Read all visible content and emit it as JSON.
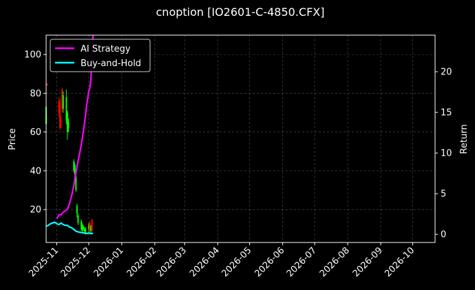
{
  "chart_data": {
    "type": "line",
    "title": "cnoption [IO2601-C-4850.CFX]",
    "xlabel": "",
    "ylabel": "Price",
    "y2label": "Return",
    "background": "#000000",
    "grid": true,
    "legend_position": "upper-left",
    "xlim": [
      "2025-10-22",
      "2026-10-22"
    ],
    "ylim": [
      3,
      110
    ],
    "y2lim": [
      -1,
      24.5
    ],
    "x_ticks": [
      "2025-11",
      "2025-12",
      "2026-01",
      "2026-02",
      "2026-03",
      "2026-04",
      "2026-05",
      "2026-06",
      "2026-07",
      "2026-08",
      "2026-09",
      "2026-10"
    ],
    "y_ticks": [
      20,
      40,
      60,
      80,
      100
    ],
    "y2_ticks": [
      0,
      5,
      10,
      15,
      20
    ],
    "colors": {
      "up": "#00ff00",
      "down": "#ff0000",
      "ai": "#ff00ff",
      "bh": "#00ffff"
    },
    "candles": [
      {
        "date": "2025-10-22",
        "open": 64,
        "close": 73,
        "low": 63,
        "high": 73
      },
      {
        "date": "2025-10-23",
        "open": 85,
        "close": 84,
        "low": 84,
        "high": 85
      },
      {
        "date": "2025-11-03",
        "open": 76,
        "close": 70,
        "low": 68,
        "high": 78
      },
      {
        "date": "2025-11-04",
        "open": 74,
        "close": 62,
        "low": 61,
        "high": 77
      },
      {
        "date": "2025-11-05",
        "open": 66,
        "close": 65,
        "low": 62,
        "high": 68
      },
      {
        "date": "2025-11-06",
        "open": 82,
        "close": 72,
        "low": 70,
        "high": 83
      },
      {
        "date": "2025-11-07",
        "open": 72,
        "close": 79,
        "low": 70,
        "high": 81
      },
      {
        "date": "2025-11-10",
        "open": 66,
        "close": 78,
        "low": 64,
        "high": 82
      },
      {
        "date": "2025-11-11",
        "open": 60,
        "close": 70,
        "low": 56,
        "high": 71
      },
      {
        "date": "2025-11-12",
        "open": 62,
        "close": 65,
        "low": 60,
        "high": 67
      },
      {
        "date": "2025-11-17",
        "open": 40,
        "close": 45,
        "low": 39,
        "high": 46
      },
      {
        "date": "2025-11-18",
        "open": 38,
        "close": 43,
        "low": 36,
        "high": 44
      },
      {
        "date": "2025-11-19",
        "open": 30,
        "close": 37,
        "low": 29,
        "high": 38
      },
      {
        "date": "2025-11-20",
        "open": 18,
        "close": 22,
        "low": 16,
        "high": 23
      },
      {
        "date": "2025-11-21",
        "open": 13,
        "close": 17,
        "low": 12,
        "high": 18
      },
      {
        "date": "2025-11-24",
        "open": 10,
        "close": 14,
        "low": 9,
        "high": 15
      },
      {
        "date": "2025-11-25",
        "open": 9,
        "close": 12,
        "low": 8,
        "high": 13
      },
      {
        "date": "2025-11-26",
        "open": 10,
        "close": 11,
        "low": 9,
        "high": 12
      },
      {
        "date": "2025-11-27",
        "open": 9,
        "close": 10,
        "low": 8,
        "high": 11
      },
      {
        "date": "2025-11-28",
        "open": 8,
        "close": 10,
        "low": 7,
        "high": 11
      },
      {
        "date": "2025-12-01",
        "open": 10,
        "close": 12,
        "low": 8,
        "high": 13
      },
      {
        "date": "2025-12-02",
        "open": 13,
        "close": 9,
        "low": 8,
        "high": 14
      },
      {
        "date": "2025-12-03",
        "open": 9,
        "close": 11,
        "low": 8,
        "high": 12
      },
      {
        "date": "2025-12-04",
        "open": 15,
        "close": 9,
        "low": 8,
        "high": 15
      }
    ],
    "series": [
      {
        "name": "AI Strategy",
        "axis": "right",
        "dates": [
          "2025-11-01",
          "2025-11-03",
          "2025-11-05",
          "2025-11-07",
          "2025-11-09",
          "2025-11-11",
          "2025-11-13",
          "2025-11-15",
          "2025-11-17",
          "2025-11-19",
          "2025-11-21",
          "2025-11-23",
          "2025-11-25",
          "2025-11-27",
          "2025-11-29",
          "2025-12-01",
          "2025-12-02",
          "2025-12-03",
          "2025-12-04",
          "2025-12-05"
        ],
        "values": [
          1.9,
          2.4,
          2.4,
          2.7,
          2.9,
          3.1,
          3.8,
          4.8,
          6.0,
          7.6,
          9.0,
          10.3,
          11.8,
          13.6,
          15.8,
          17.6,
          18.0,
          19.0,
          22.0,
          24.5
        ]
      },
      {
        "name": "Buy-and-Hold",
        "axis": "right",
        "dates": [
          "2025-10-22",
          "2025-10-24",
          "2025-10-26",
          "2025-10-28",
          "2025-10-30",
          "2025-11-01",
          "2025-11-03",
          "2025-11-05",
          "2025-11-07",
          "2025-11-09",
          "2025-11-11",
          "2025-11-13",
          "2025-11-15",
          "2025-11-17",
          "2025-11-19",
          "2025-11-21",
          "2025-11-23",
          "2025-11-25",
          "2025-11-27",
          "2025-11-29",
          "2025-12-01",
          "2025-12-03",
          "2025-12-05"
        ],
        "values": [
          1.0,
          1.1,
          1.3,
          1.4,
          1.5,
          1.3,
          1.2,
          1.4,
          1.2,
          1.1,
          1.1,
          0.9,
          0.8,
          0.6,
          0.4,
          0.3,
          0.25,
          0.2,
          0.15,
          0.1,
          0.15,
          0.1,
          0.1
        ]
      }
    ]
  }
}
